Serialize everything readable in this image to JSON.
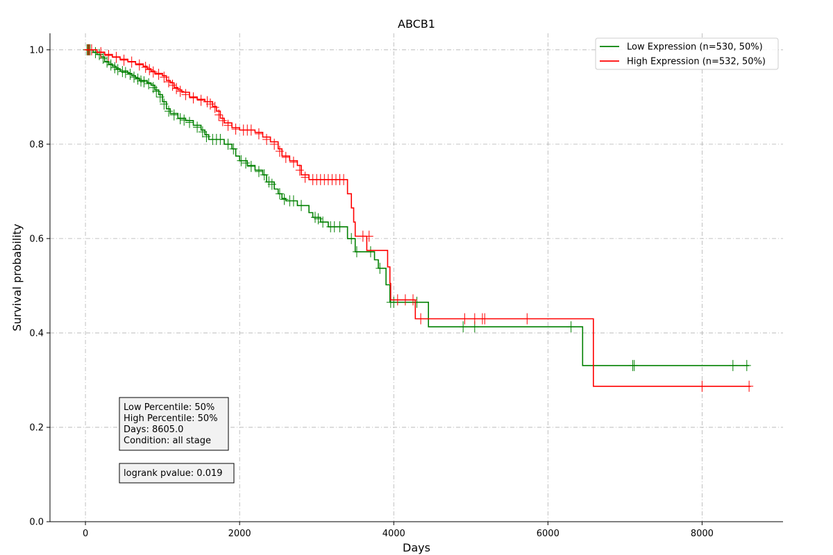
{
  "chart_data": {
    "type": "line",
    "title": "ABCB1",
    "xlabel": "Days",
    "ylabel": "Survival probability",
    "xlim": [
      -460,
      9050
    ],
    "ylim": [
      0,
      1.035
    ],
    "xticks": [
      0,
      2000,
      4000,
      6000,
      8000
    ],
    "xtick_labels": [
      "0",
      "2000",
      "4000",
      "6000",
      "8000"
    ],
    "yticks": [
      0.0,
      0.2,
      0.4,
      0.6,
      0.8,
      1.0
    ],
    "ytick_labels": [
      "0.0",
      "0.2",
      "0.4",
      "0.6",
      "0.8",
      "1.0"
    ],
    "grid": true,
    "legend_position": "top-right",
    "series": [
      {
        "name": "Low Expression (n=530, 50%)",
        "color": "#008000",
        "steps": [
          [
            0,
            1.0
          ],
          [
            100,
            0.995
          ],
          [
            150,
            0.99
          ],
          [
            200,
            0.985
          ],
          [
            250,
            0.975
          ],
          [
            300,
            0.97
          ],
          [
            350,
            0.965
          ],
          [
            400,
            0.96
          ],
          [
            450,
            0.955
          ],
          [
            550,
            0.95
          ],
          [
            600,
            0.945
          ],
          [
            650,
            0.94
          ],
          [
            700,
            0.935
          ],
          [
            800,
            0.93
          ],
          [
            850,
            0.925
          ],
          [
            900,
            0.915
          ],
          [
            950,
            0.905
          ],
          [
            1000,
            0.89
          ],
          [
            1050,
            0.875
          ],
          [
            1100,
            0.865
          ],
          [
            1200,
            0.855
          ],
          [
            1300,
            0.85
          ],
          [
            1400,
            0.84
          ],
          [
            1500,
            0.83
          ],
          [
            1550,
            0.82
          ],
          [
            1600,
            0.81
          ],
          [
            1800,
            0.8
          ],
          [
            1900,
            0.79
          ],
          [
            1950,
            0.775
          ],
          [
            2000,
            0.765
          ],
          [
            2100,
            0.755
          ],
          [
            2200,
            0.745
          ],
          [
            2300,
            0.735
          ],
          [
            2350,
            0.72
          ],
          [
            2450,
            0.705
          ],
          [
            2500,
            0.695
          ],
          [
            2550,
            0.685
          ],
          [
            2600,
            0.68
          ],
          [
            2750,
            0.67
          ],
          [
            2900,
            0.655
          ],
          [
            2950,
            0.645
          ],
          [
            3050,
            0.635
          ],
          [
            3150,
            0.625
          ],
          [
            3400,
            0.6
          ],
          [
            3500,
            0.572
          ],
          [
            3750,
            0.555
          ],
          [
            3800,
            0.537
          ],
          [
            3900,
            0.502
          ],
          [
            3950,
            0.465
          ],
          [
            4450,
            0.413
          ],
          [
            6450,
            0.331
          ],
          [
            8610,
            0.331
          ]
        ],
        "censors": [
          [
            20,
            1.0
          ],
          [
            40,
            1.0
          ],
          [
            60,
            1.0
          ],
          [
            130,
            0.994
          ],
          [
            180,
            0.99
          ],
          [
            230,
            0.982
          ],
          [
            280,
            0.974
          ],
          [
            330,
            0.968
          ],
          [
            380,
            0.962
          ],
          [
            420,
            0.958
          ],
          [
            480,
            0.954
          ],
          [
            520,
            0.952
          ],
          [
            580,
            0.948
          ],
          [
            630,
            0.942
          ],
          [
            680,
            0.938
          ],
          [
            720,
            0.934
          ],
          [
            760,
            0.932
          ],
          [
            820,
            0.928
          ],
          [
            880,
            0.92
          ],
          [
            920,
            0.912
          ],
          [
            970,
            0.9
          ],
          [
            1020,
            0.885
          ],
          [
            1080,
            0.87
          ],
          [
            1150,
            0.862
          ],
          [
            1230,
            0.854
          ],
          [
            1280,
            0.851
          ],
          [
            1350,
            0.846
          ],
          [
            1450,
            0.836
          ],
          [
            1520,
            0.826
          ],
          [
            1570,
            0.816
          ],
          [
            1650,
            0.81
          ],
          [
            1700,
            0.81
          ],
          [
            1750,
            0.81
          ],
          [
            1850,
            0.8
          ],
          [
            1920,
            0.79
          ],
          [
            2020,
            0.765
          ],
          [
            2080,
            0.76
          ],
          [
            2150,
            0.753
          ],
          [
            2250,
            0.742
          ],
          [
            2320,
            0.735
          ],
          [
            2380,
            0.72
          ],
          [
            2420,
            0.715
          ],
          [
            2520,
            0.695
          ],
          [
            2580,
            0.683
          ],
          [
            2650,
            0.68
          ],
          [
            2700,
            0.68
          ],
          [
            2800,
            0.67
          ],
          [
            2980,
            0.645
          ],
          [
            3020,
            0.642
          ],
          [
            3080,
            0.635
          ],
          [
            3180,
            0.625
          ],
          [
            3230,
            0.625
          ],
          [
            3300,
            0.625
          ],
          [
            3450,
            0.6
          ],
          [
            3520,
            0.572
          ],
          [
            3700,
            0.572
          ],
          [
            3820,
            0.537
          ],
          [
            3960,
            0.465
          ],
          [
            4000,
            0.465
          ],
          [
            4300,
            0.465
          ],
          [
            4900,
            0.413
          ],
          [
            5050,
            0.413
          ],
          [
            6300,
            0.413
          ],
          [
            7100,
            0.331
          ],
          [
            7120,
            0.331
          ],
          [
            8400,
            0.331
          ],
          [
            8580,
            0.331
          ]
        ]
      },
      {
        "name": "High Expression (n=532, 50%)",
        "color": "#ff0000",
        "steps": [
          [
            0,
            1.0
          ],
          [
            150,
            0.995
          ],
          [
            250,
            0.99
          ],
          [
            350,
            0.985
          ],
          [
            450,
            0.98
          ],
          [
            550,
            0.975
          ],
          [
            650,
            0.97
          ],
          [
            750,
            0.965
          ],
          [
            800,
            0.96
          ],
          [
            850,
            0.955
          ],
          [
            900,
            0.95
          ],
          [
            1000,
            0.945
          ],
          [
            1050,
            0.935
          ],
          [
            1100,
            0.93
          ],
          [
            1150,
            0.92
          ],
          [
            1200,
            0.915
          ],
          [
            1250,
            0.91
          ],
          [
            1350,
            0.9
          ],
          [
            1450,
            0.895
          ],
          [
            1550,
            0.89
          ],
          [
            1650,
            0.88
          ],
          [
            1700,
            0.87
          ],
          [
            1750,
            0.855
          ],
          [
            1800,
            0.845
          ],
          [
            1900,
            0.835
          ],
          [
            2000,
            0.83
          ],
          [
            2200,
            0.825
          ],
          [
            2300,
            0.815
          ],
          [
            2400,
            0.805
          ],
          [
            2500,
            0.79
          ],
          [
            2550,
            0.775
          ],
          [
            2650,
            0.765
          ],
          [
            2750,
            0.755
          ],
          [
            2800,
            0.735
          ],
          [
            2900,
            0.725
          ],
          [
            3400,
            0.695
          ],
          [
            3450,
            0.665
          ],
          [
            3480,
            0.635
          ],
          [
            3500,
            0.605
          ],
          [
            3650,
            0.575
          ],
          [
            3920,
            0.54
          ],
          [
            3950,
            0.505
          ],
          [
            3960,
            0.47
          ],
          [
            4280,
            0.43
          ],
          [
            6590,
            0.287
          ],
          [
            8630,
            0.287
          ]
        ],
        "censors": [
          [
            30,
            1.0
          ],
          [
            50,
            1.0
          ],
          [
            80,
            1.0
          ],
          [
            200,
            0.994
          ],
          [
            300,
            0.988
          ],
          [
            400,
            0.984
          ],
          [
            500,
            0.978
          ],
          [
            600,
            0.974
          ],
          [
            700,
            0.968
          ],
          [
            780,
            0.963
          ],
          [
            830,
            0.958
          ],
          [
            880,
            0.953
          ],
          [
            950,
            0.948
          ],
          [
            1020,
            0.942
          ],
          [
            1080,
            0.932
          ],
          [
            1130,
            0.925
          ],
          [
            1180,
            0.918
          ],
          [
            1230,
            0.912
          ],
          [
            1300,
            0.905
          ],
          [
            1400,
            0.898
          ],
          [
            1500,
            0.893
          ],
          [
            1580,
            0.89
          ],
          [
            1620,
            0.885
          ],
          [
            1680,
            0.878
          ],
          [
            1730,
            0.862
          ],
          [
            1780,
            0.85
          ],
          [
            1850,
            0.84
          ],
          [
            1950,
            0.832
          ],
          [
            2050,
            0.83
          ],
          [
            2100,
            0.83
          ],
          [
            2150,
            0.83
          ],
          [
            2250,
            0.822
          ],
          [
            2350,
            0.81
          ],
          [
            2450,
            0.8
          ],
          [
            2520,
            0.785
          ],
          [
            2600,
            0.772
          ],
          [
            2700,
            0.762
          ],
          [
            2780,
            0.745
          ],
          [
            2850,
            0.73
          ],
          [
            2950,
            0.725
          ],
          [
            3000,
            0.725
          ],
          [
            3050,
            0.725
          ],
          [
            3100,
            0.725
          ],
          [
            3150,
            0.725
          ],
          [
            3200,
            0.725
          ],
          [
            3250,
            0.725
          ],
          [
            3300,
            0.725
          ],
          [
            3350,
            0.725
          ],
          [
            3600,
            0.605
          ],
          [
            3680,
            0.605
          ],
          [
            4050,
            0.47
          ],
          [
            4150,
            0.47
          ],
          [
            4250,
            0.47
          ],
          [
            4350,
            0.43
          ],
          [
            4920,
            0.43
          ],
          [
            5050,
            0.43
          ],
          [
            5150,
            0.43
          ],
          [
            5180,
            0.43
          ],
          [
            5730,
            0.43
          ],
          [
            8000,
            0.287
          ],
          [
            8610,
            0.287
          ]
        ]
      }
    ],
    "annotations": [
      {
        "name": "info-box",
        "lines": [
          "Low Percentile: 50%",
          "High Percentile: 50%",
          "Days: 8605.0",
          "Condition: all stage"
        ]
      },
      {
        "name": "pvalue-box",
        "lines": [
          "logrank pvalue: 0.019"
        ]
      }
    ]
  }
}
